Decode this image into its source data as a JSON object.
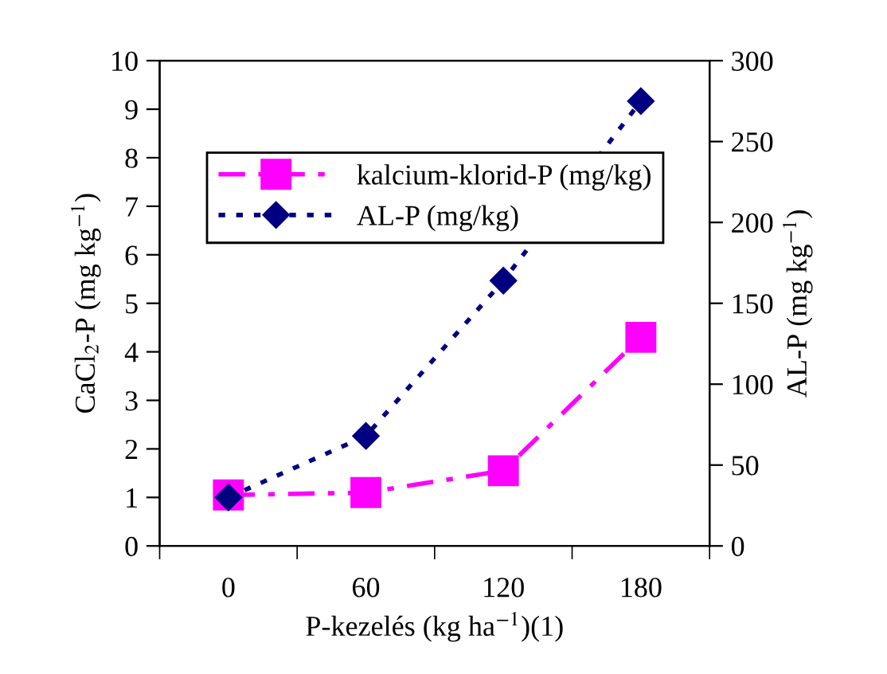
{
  "chart_data": {
    "type": "line",
    "xlabel": "P-kezelés (kg ha$^{−1}$)(1)",
    "ylabel": "CaCl$_{2}$-P (mg kg$^{−1}$)",
    "y2label": "AL-P (mg kg$^{−1}$)",
    "categories": [
      "0",
      "60",
      "120",
      "180"
    ],
    "series": [
      {
        "name": "kalcium-klorid-P (mg/kg)",
        "color": "#ff00ff",
        "values": [
          1.05,
          1.1,
          1.55,
          4.3
        ],
        "marker": "square",
        "line_style": "dashed"
      },
      {
        "name": "AL-P (mg/kg)",
        "color": "#000080",
        "values": [
          30,
          68,
          164,
          275
        ],
        "marker": "diamond",
        "line_style": "dotted",
        "axis": "y2"
      }
    ],
    "ylim": [
      0,
      10
    ],
    "yticks": [
      0,
      1,
      2,
      3,
      4,
      5,
      6,
      7,
      8,
      9,
      10
    ],
    "y2lim": [
      0,
      300
    ],
    "y2ticks": [
      0,
      50,
      100,
      150,
      200,
      250,
      300
    ],
    "grid": false,
    "legend": "top left"
  }
}
